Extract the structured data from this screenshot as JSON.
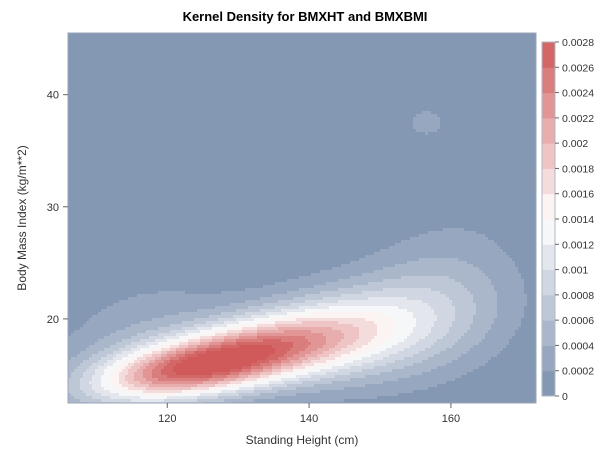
{
  "chart_data": {
    "type": "heatmap",
    "subtype": "kernel-density-contour",
    "title": "Kernel Density for BMXHT and BMXBMI",
    "xlabel": "Standing Height (cm)",
    "ylabel": "Body Mass Index (kg/m**2)",
    "xlim": [
      106,
      172
    ],
    "ylim": [
      12.5,
      45.5
    ],
    "x_ticks": [
      120,
      140,
      160
    ],
    "y_ticks": [
      20,
      30,
      40
    ],
    "grid": false,
    "legend": {
      "type": "colorbar",
      "placement": "right",
      "min": 0,
      "max": 0.0028,
      "tick_values": [
        0,
        0.0002,
        0.0004,
        0.0006,
        0.0008,
        0.001,
        0.0012,
        0.0014,
        0.0016,
        0.0018,
        0.002,
        0.0022,
        0.0024,
        0.0026,
        0.0028
      ],
      "tick_labels": [
        "0",
        "0.0002",
        "0.0004",
        "0.0006",
        "0.0008",
        "0.001",
        "0.0012",
        "0.0014",
        "0.0016",
        "0.0018",
        "0.002",
        "0.0022",
        "0.0024",
        "0.0026",
        "0.0028"
      ]
    },
    "colors": {
      "low": "#7b8fad",
      "mid": "#ffffff",
      "high": "#d05a5a"
    },
    "density_components": [
      {
        "x": 123,
        "y": 15.5,
        "sx": 9.5,
        "sy": 2.0,
        "rho": 0.45,
        "peak": 0.0023
      },
      {
        "x": 136,
        "y": 17.8,
        "sx": 10.0,
        "sy": 2.4,
        "rho": 0.35,
        "peak": 0.0016
      },
      {
        "x": 150,
        "y": 19.2,
        "sx": 10.0,
        "sy": 3.5,
        "rho": 0.25,
        "peak": 0.00085
      },
      {
        "x": 160,
        "y": 23.0,
        "sx": 7.5,
        "sy": 5.0,
        "rho": 0.1,
        "peak": 0.00028
      },
      {
        "x": 115,
        "y": 18.5,
        "sx": 9.0,
        "sy": 4.0,
        "rho": 0.4,
        "peak": 0.0003
      },
      {
        "x": 156.5,
        "y": 37.5,
        "sx": 2.6,
        "sy": 1.2,
        "rho": 0.0,
        "peak": 0.00027
      }
    ]
  }
}
